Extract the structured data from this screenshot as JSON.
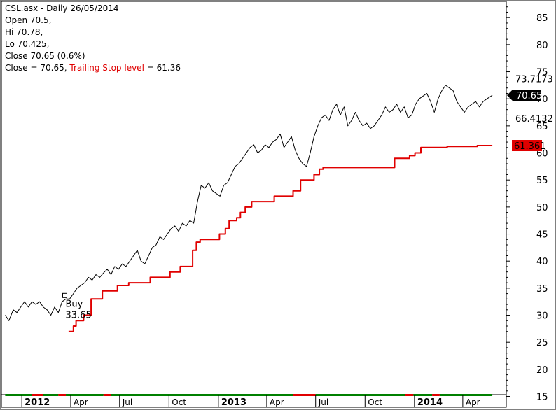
{
  "header": {
    "title": "CSL.asx - Daily 26/05/2014",
    "open": "Open 70.5,",
    "high": "Hi 70.78,",
    "low": "Lo 70.425,",
    "close": "Close 70.65 (0.6%)",
    "close_eq": "Close = 70.65,",
    "stop_name": "Trailing Stop level",
    "stop_eq": "= 61.36"
  },
  "chart_data": {
    "type": "line",
    "ylim": [
      13,
      88
    ],
    "y_ticks": [
      15,
      20,
      25,
      30,
      35,
      40,
      45,
      50,
      55,
      60,
      65,
      70,
      75,
      80,
      85
    ],
    "x_ticks": [
      {
        "label": "2012",
        "date": "2012-01",
        "bold": true
      },
      {
        "label": "Apr",
        "date": "2012-04"
      },
      {
        "label": "Jul",
        "date": "2012-07"
      },
      {
        "label": "Oct",
        "date": "2012-10"
      },
      {
        "label": "2013",
        "date": "2013-01",
        "bold": true
      },
      {
        "label": "Apr",
        "date": "2013-04"
      },
      {
        "label": "Jul",
        "date": "2013-07"
      },
      {
        "label": "Oct",
        "date": "2013-10"
      },
      {
        "label": "2014",
        "date": "2014-01",
        "bold": true
      },
      {
        "label": "Apr",
        "date": "2014-04"
      }
    ],
    "series": [
      {
        "color": "#000000",
        "points": [
          [
            "2011-12-01",
            30
          ],
          [
            "2011-12-08",
            29
          ],
          [
            "2011-12-16",
            31
          ],
          [
            "2011-12-23",
            30.5
          ],
          [
            "2011-12-30",
            31.5
          ],
          [
            "2012-01-06",
            32.5
          ],
          [
            "2012-01-13",
            31.5
          ],
          [
            "2012-01-20",
            32.5
          ],
          [
            "2012-01-27",
            32
          ],
          [
            "2012-02-03",
            32.5
          ],
          [
            "2012-02-10",
            31.5
          ],
          [
            "2012-02-17",
            31
          ],
          [
            "2012-02-24",
            30
          ],
          [
            "2012-03-02",
            31.5
          ],
          [
            "2012-03-09",
            30.5
          ],
          [
            "2012-03-16",
            32.5
          ],
          [
            "2012-03-23",
            33
          ],
          [
            "2012-03-30",
            33
          ],
          [
            "2012-04-06",
            34
          ],
          [
            "2012-04-13",
            35
          ],
          [
            "2012-04-20",
            35.5
          ],
          [
            "2012-04-27",
            36
          ],
          [
            "2012-05-04",
            37
          ],
          [
            "2012-05-11",
            36.5
          ],
          [
            "2012-05-18",
            37.5
          ],
          [
            "2012-05-25",
            37
          ],
          [
            "2012-06-01",
            37.8
          ],
          [
            "2012-06-08",
            38.5
          ],
          [
            "2012-06-15",
            37.5
          ],
          [
            "2012-06-22",
            39
          ],
          [
            "2012-06-29",
            38.5
          ],
          [
            "2012-07-06",
            39.5
          ],
          [
            "2012-07-13",
            39
          ],
          [
            "2012-07-20",
            40
          ],
          [
            "2012-07-27",
            41
          ],
          [
            "2012-08-03",
            42
          ],
          [
            "2012-08-10",
            40
          ],
          [
            "2012-08-17",
            39.5
          ],
          [
            "2012-08-24",
            41
          ],
          [
            "2012-08-31",
            42.5
          ],
          [
            "2012-09-07",
            43
          ],
          [
            "2012-09-14",
            44.5
          ],
          [
            "2012-09-21",
            44
          ],
          [
            "2012-09-28",
            45
          ],
          [
            "2012-10-05",
            46
          ],
          [
            "2012-10-12",
            46.5
          ],
          [
            "2012-10-19",
            45.5
          ],
          [
            "2012-10-26",
            47
          ],
          [
            "2012-11-02",
            46.5
          ],
          [
            "2012-11-09",
            47.5
          ],
          [
            "2012-11-16",
            47
          ],
          [
            "2012-11-23",
            51
          ],
          [
            "2012-11-30",
            54
          ],
          [
            "2012-12-07",
            53.5
          ],
          [
            "2012-12-14",
            54.5
          ],
          [
            "2012-12-21",
            53
          ],
          [
            "2013-01-04",
            52
          ],
          [
            "2013-01-11",
            54
          ],
          [
            "2013-01-18",
            54.5
          ],
          [
            "2013-01-25",
            56
          ],
          [
            "2013-02-01",
            57.5
          ],
          [
            "2013-02-08",
            58
          ],
          [
            "2013-02-15",
            59
          ],
          [
            "2013-02-22",
            60
          ],
          [
            "2013-03-01",
            61
          ],
          [
            "2013-03-08",
            61.5
          ],
          [
            "2013-03-15",
            60
          ],
          [
            "2013-03-22",
            60.5
          ],
          [
            "2013-03-29",
            61.5
          ],
          [
            "2013-04-05",
            61
          ],
          [
            "2013-04-12",
            62
          ],
          [
            "2013-04-19",
            62.5
          ],
          [
            "2013-04-26",
            63.5
          ],
          [
            "2013-05-03",
            61
          ],
          [
            "2013-05-10",
            62
          ],
          [
            "2013-05-17",
            63
          ],
          [
            "2013-05-24",
            60.5
          ],
          [
            "2013-05-31",
            59
          ],
          [
            "2013-06-07",
            58
          ],
          [
            "2013-06-14",
            57.5
          ],
          [
            "2013-06-21",
            60
          ],
          [
            "2013-06-28",
            63
          ],
          [
            "2013-07-05",
            65
          ],
          [
            "2013-07-12",
            66.5
          ],
          [
            "2013-07-19",
            67
          ],
          [
            "2013-07-26",
            66
          ],
          [
            "2013-08-02",
            68
          ],
          [
            "2013-08-09",
            69
          ],
          [
            "2013-08-16",
            67
          ],
          [
            "2013-08-23",
            68.5
          ],
          [
            "2013-08-30",
            65
          ],
          [
            "2013-09-06",
            66
          ],
          [
            "2013-09-13",
            67.5
          ],
          [
            "2013-09-20",
            66
          ],
          [
            "2013-09-27",
            65
          ],
          [
            "2013-10-04",
            65.5
          ],
          [
            "2013-10-11",
            64.5
          ],
          [
            "2013-10-18",
            65
          ],
          [
            "2013-10-25",
            66
          ],
          [
            "2013-11-01",
            67
          ],
          [
            "2013-11-08",
            68.5
          ],
          [
            "2013-11-15",
            67.5
          ],
          [
            "2013-11-22",
            68
          ],
          [
            "2013-11-29",
            69
          ],
          [
            "2013-12-06",
            67.5
          ],
          [
            "2013-12-13",
            68.5
          ],
          [
            "2013-12-20",
            66.5
          ],
          [
            "2013-12-27",
            67
          ],
          [
            "2014-01-03",
            69
          ],
          [
            "2014-01-10",
            70
          ],
          [
            "2014-01-17",
            70.5
          ],
          [
            "2014-01-24",
            71
          ],
          [
            "2014-01-31",
            69.5
          ],
          [
            "2014-02-07",
            67.5
          ],
          [
            "2014-02-14",
            70
          ],
          [
            "2014-02-21",
            71.5
          ],
          [
            "2014-02-28",
            72.5
          ],
          [
            "2014-03-07",
            72
          ],
          [
            "2014-03-14",
            71.5
          ],
          [
            "2014-03-21",
            69.5
          ],
          [
            "2014-03-28",
            68.5
          ],
          [
            "2014-04-04",
            67.5
          ],
          [
            "2014-04-11",
            68.5
          ],
          [
            "2014-04-18",
            69
          ],
          [
            "2014-04-25",
            69.5
          ],
          [
            "2014-05-02",
            68.5
          ],
          [
            "2014-05-09",
            69.5
          ],
          [
            "2014-05-16",
            70
          ],
          [
            "2014-05-26",
            70.65
          ]
        ]
      },
      {
        "color": "#e00000",
        "type": "step",
        "points": [
          [
            "2012-03-28",
            27
          ],
          [
            "2012-04-06",
            28
          ],
          [
            "2012-04-11",
            29
          ],
          [
            "2012-04-25",
            30
          ],
          [
            "2012-05-09",
            33
          ],
          [
            "2012-05-30",
            34.5
          ],
          [
            "2012-06-27",
            35.5
          ],
          [
            "2012-07-18",
            36
          ],
          [
            "2012-08-27",
            37
          ],
          [
            "2012-10-03",
            38
          ],
          [
            "2012-10-22",
            39
          ],
          [
            "2012-11-14",
            42
          ],
          [
            "2012-11-21",
            43.5
          ],
          [
            "2012-11-28",
            44
          ],
          [
            "2013-01-03",
            45
          ],
          [
            "2013-01-14",
            46
          ],
          [
            "2013-01-21",
            47.5
          ],
          [
            "2013-02-04",
            48
          ],
          [
            "2013-02-11",
            49
          ],
          [
            "2013-02-20",
            50
          ],
          [
            "2013-03-04",
            51
          ],
          [
            "2013-04-15",
            52
          ],
          [
            "2013-05-20",
            53
          ],
          [
            "2013-06-03",
            55
          ],
          [
            "2013-06-28",
            56
          ],
          [
            "2013-07-08",
            57
          ],
          [
            "2013-07-15",
            57.3
          ],
          [
            "2013-11-18",
            57.3
          ],
          [
            "2013-11-25",
            59
          ],
          [
            "2013-12-23",
            59.5
          ],
          [
            "2014-01-02",
            60
          ],
          [
            "2014-01-13",
            61
          ],
          [
            "2014-03-03",
            61.2
          ],
          [
            "2014-04-28",
            61.36
          ],
          [
            "2014-05-26",
            61.36
          ]
        ]
      }
    ],
    "annotations": {
      "buy_label": "Buy",
      "buy_price": "33.65",
      "buy_date": "2012-03-21",
      "buy_value": 33.65,
      "high_label": "73.7173",
      "high_value": 73.7173,
      "low_label": "66.4132",
      "low_value": 66.4132,
      "close_badge": "70.65",
      "close_value": 70.65,
      "stop_badge": "61.361",
      "stop_value": 61.361
    },
    "band": [
      {
        "from": "2011-12-01",
        "to": "2012-01-20",
        "color": "#008000"
      },
      {
        "from": "2012-01-20",
        "to": "2012-02-10",
        "color": "#e00000"
      },
      {
        "from": "2012-02-10",
        "to": "2012-03-09",
        "color": "#008000"
      },
      {
        "from": "2012-03-09",
        "to": "2012-03-23",
        "color": "#e00000"
      },
      {
        "from": "2012-03-23",
        "to": "2012-06-01",
        "color": "#008000"
      },
      {
        "from": "2012-06-01",
        "to": "2012-06-15",
        "color": "#e00000"
      },
      {
        "from": "2012-06-15",
        "to": "2013-05-20",
        "color": "#008000"
      },
      {
        "from": "2013-05-20",
        "to": "2013-07-01",
        "color": "#e00000"
      },
      {
        "from": "2013-07-01",
        "to": "2013-12-15",
        "color": "#008000"
      },
      {
        "from": "2013-12-15",
        "to": "2013-12-30",
        "color": "#e00000"
      },
      {
        "from": "2013-12-30",
        "to": "2014-02-03",
        "color": "#008000"
      },
      {
        "from": "2014-02-03",
        "to": "2014-02-17",
        "color": "#e00000"
      },
      {
        "from": "2014-02-17",
        "to": "2014-05-26",
        "color": "#008000"
      }
    ]
  }
}
